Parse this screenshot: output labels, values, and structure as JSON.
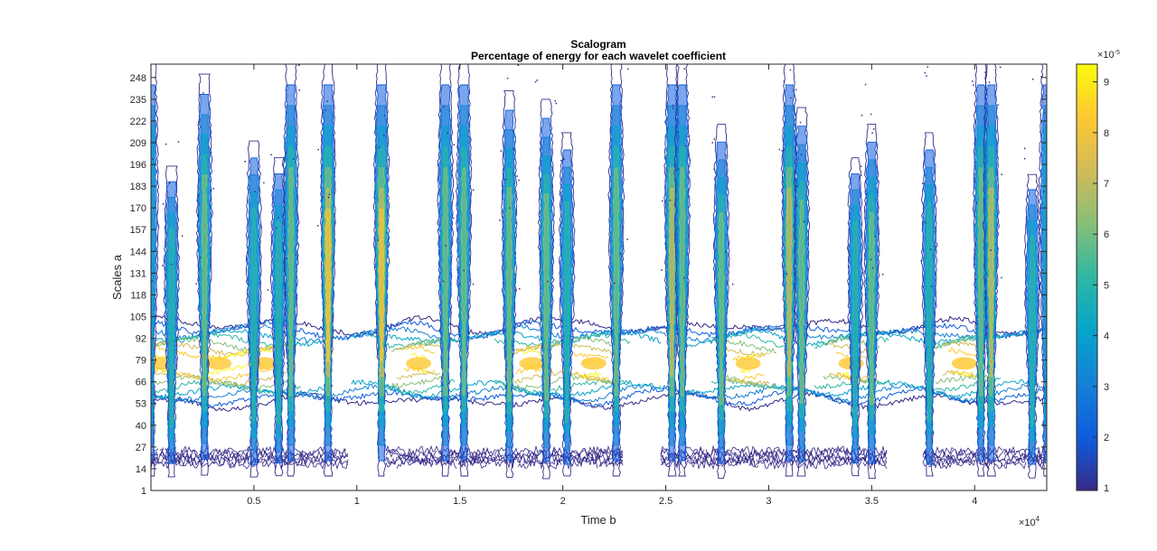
{
  "chart_data": {
    "type": "heatmap",
    "subtype": "contour scalogram",
    "title": "Scalogram",
    "subtitle": "Percentage of energy for each wavelet coefficient",
    "xlabel": "Time b",
    "ylabel": "Scales a",
    "x_multiplier": "×10",
    "x_multiplier_exp": "4",
    "xlim": [
      0,
      43500
    ],
    "ylim": [
      1,
      256
    ],
    "xticks": [
      5000,
      10000,
      15000,
      20000,
      25000,
      30000,
      35000,
      40000
    ],
    "xtick_labels": [
      "0.5",
      "1",
      "1.5",
      "2",
      "2.5",
      "3",
      "3.5",
      "4"
    ],
    "yticks": [
      1,
      14,
      27,
      40,
      53,
      66,
      79,
      92,
      105,
      118,
      131,
      144,
      157,
      170,
      183,
      196,
      209,
      222,
      235,
      248
    ],
    "colorbar": {
      "multiplier": "×10",
      "multiplier_exp": "-5",
      "range": [
        0.95,
        9.35
      ],
      "ticks": [
        1,
        2,
        3,
        4,
        5,
        6,
        7,
        8,
        9
      ],
      "colormap": [
        "#352a87",
        "#0f5cdd",
        "#1481d6",
        "#06a4ca",
        "#2eb7a4",
        "#87bf77",
        "#d1bb59",
        "#fec832",
        "#f9fb0e"
      ]
    },
    "band": {
      "center_scale": 77,
      "low_scale": 53,
      "high_scale": 102,
      "peak_times": [
        500,
        3300,
        5500,
        13000,
        18500,
        21500,
        29000,
        34000,
        39500
      ]
    },
    "low_band": {
      "low_scale": 14,
      "high_scale": 27
    },
    "bursts": [
      {
        "t": 0,
        "top": 256,
        "peak": 3
      },
      {
        "t": 1000,
        "top": 195,
        "peak": 4
      },
      {
        "t": 2600,
        "top": 250,
        "peak": 5
      },
      {
        "t": 5000,
        "top": 210,
        "peak": 4
      },
      {
        "t": 6200,
        "top": 200,
        "peak": 4
      },
      {
        "t": 6800,
        "top": 256,
        "peak": 5
      },
      {
        "t": 8600,
        "top": 256,
        "peak": 7
      },
      {
        "t": 11200,
        "top": 256,
        "peak": 7
      },
      {
        "t": 14300,
        "top": 256,
        "peak": 5
      },
      {
        "t": 15200,
        "top": 256,
        "peak": 5
      },
      {
        "t": 17400,
        "top": 240,
        "peak": 5
      },
      {
        "t": 19200,
        "top": 235,
        "peak": 5
      },
      {
        "t": 20200,
        "top": 215,
        "peak": 4
      },
      {
        "t": 22600,
        "top": 256,
        "peak": 5
      },
      {
        "t": 25300,
        "top": 256,
        "peak": 6
      },
      {
        "t": 25800,
        "top": 256,
        "peak": 5
      },
      {
        "t": 27700,
        "top": 220,
        "peak": 5
      },
      {
        "t": 31000,
        "top": 256,
        "peak": 6
      },
      {
        "t": 31600,
        "top": 230,
        "peak": 5
      },
      {
        "t": 34200,
        "top": 200,
        "peak": 4
      },
      {
        "t": 35000,
        "top": 220,
        "peak": 5
      },
      {
        "t": 37800,
        "top": 215,
        "peak": 4
      },
      {
        "t": 40300,
        "top": 256,
        "peak": 5
      },
      {
        "t": 40800,
        "top": 256,
        "peak": 6
      },
      {
        "t": 42800,
        "top": 190,
        "peak": 4
      },
      {
        "t": 43500,
        "top": 256,
        "peak": 3
      }
    ]
  }
}
